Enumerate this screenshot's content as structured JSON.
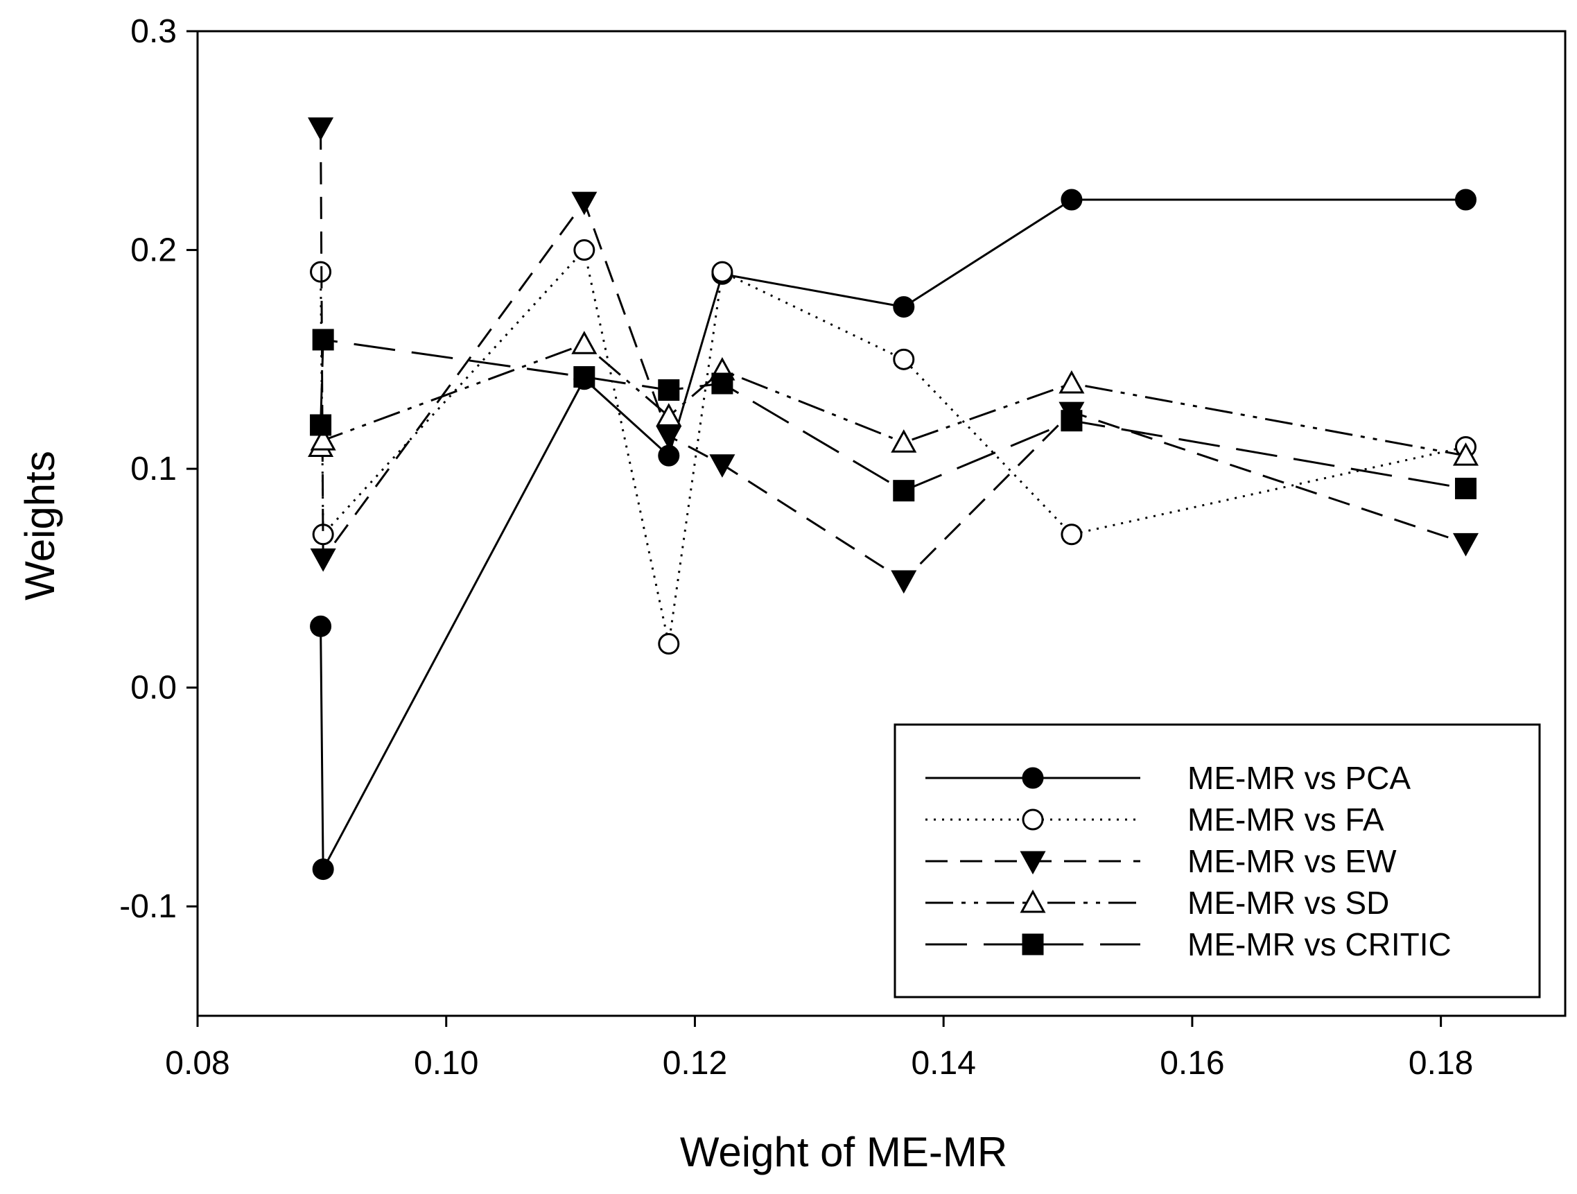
{
  "chart_data": {
    "type": "line",
    "title": "",
    "xlabel": "Weight of ME-MR",
    "ylabel": "Weights",
    "xlim": [
      0.08,
      0.19
    ],
    "ylim": [
      -0.15,
      0.3
    ],
    "xticks": [
      0.08,
      0.1,
      0.12,
      0.14,
      0.16,
      0.18
    ],
    "xtick_labels": [
      "0.08",
      "0.10",
      "0.12",
      "0.14",
      "0.16",
      "0.18"
    ],
    "yticks": [
      -0.1,
      0.0,
      0.1,
      0.2,
      0.3
    ],
    "ytick_labels": [
      "-0.1",
      "0.0",
      "0.1",
      "0.2",
      "0.3"
    ],
    "grid": false,
    "legend_position": "bottom-right",
    "series": [
      {
        "name": "ME-MR vs PCA",
        "marker": "filled-circle",
        "line_style": "solid",
        "points": [
          [
            0.0899,
            0.028
          ],
          [
            0.0901,
            -0.083
          ],
          [
            0.1111,
            0.141
          ],
          [
            0.1179,
            0.106
          ],
          [
            0.1222,
            0.189
          ],
          [
            0.1368,
            0.174
          ],
          [
            0.1503,
            0.223
          ],
          [
            0.182,
            0.223
          ]
        ]
      },
      {
        "name": "ME-MR vs FA",
        "marker": "open-circle",
        "line_style": "dotted",
        "points": [
          [
            0.0899,
            0.19
          ],
          [
            0.0901,
            0.07
          ],
          [
            0.1111,
            0.2
          ],
          [
            0.1179,
            0.02
          ],
          [
            0.1222,
            0.19
          ],
          [
            0.1368,
            0.15
          ],
          [
            0.1503,
            0.07
          ],
          [
            0.182,
            0.11
          ]
        ]
      },
      {
        "name": "ME-MR vs EW",
        "marker": "filled-triangle-down",
        "line_style": "dashed",
        "points": [
          [
            0.0899,
            0.256
          ],
          [
            0.0901,
            0.059
          ],
          [
            0.1111,
            0.222
          ],
          [
            0.1179,
            0.115
          ],
          [
            0.1222,
            0.102
          ],
          [
            0.1368,
            0.049
          ],
          [
            0.1503,
            0.126
          ],
          [
            0.182,
            0.066
          ]
        ]
      },
      {
        "name": "ME-MR vs SD",
        "marker": "open-triangle-up",
        "line_style": "dash-dot-dot",
        "points": [
          [
            0.0899,
            0.11
          ],
          [
            0.0901,
            0.113
          ],
          [
            0.1111,
            0.157
          ],
          [
            0.1179,
            0.124
          ],
          [
            0.1222,
            0.145
          ],
          [
            0.1368,
            0.112
          ],
          [
            0.1503,
            0.139
          ],
          [
            0.182,
            0.106
          ]
        ]
      },
      {
        "name": "ME-MR vs CRITIC",
        "marker": "filled-square",
        "line_style": "long-dash",
        "points": [
          [
            0.0899,
            0.12
          ],
          [
            0.0901,
            0.159
          ],
          [
            0.1111,
            0.142
          ],
          [
            0.1179,
            0.136
          ],
          [
            0.1222,
            0.139
          ],
          [
            0.1368,
            0.09
          ],
          [
            0.1503,
            0.122
          ],
          [
            0.182,
            0.091
          ]
        ]
      }
    ]
  }
}
